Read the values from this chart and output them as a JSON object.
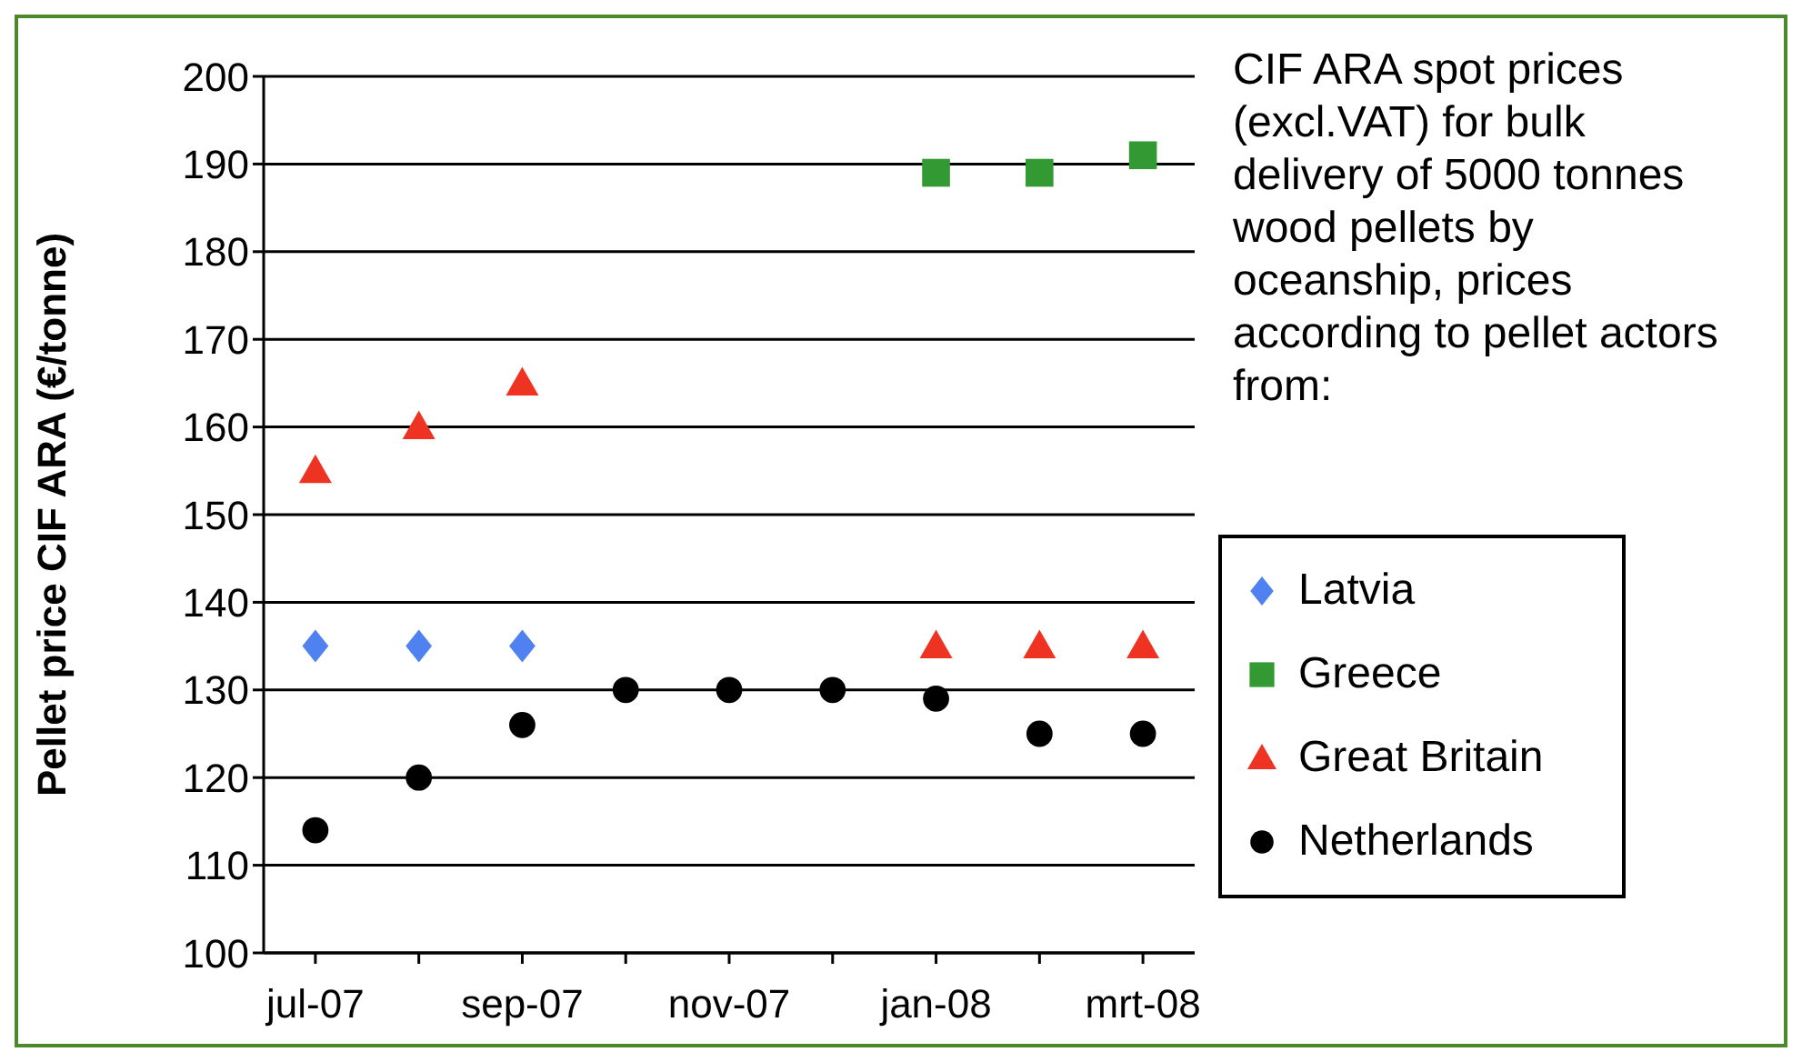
{
  "chart_data": {
    "type": "scatter",
    "title": "CIF ARA spot prices (excl.VAT) for bulk delivery of 5000 tonnes wood pellets by oceanship, prices according to pellet actors from:",
    "ylabel": "Pellet price CIF ARA (€/tonne)",
    "categories": [
      "jul-07",
      null,
      "sep-07",
      null,
      "nov-07",
      null,
      "jan-08",
      null,
      "mrt-08"
    ],
    "ylim": [
      100,
      200
    ],
    "yticks": [
      100,
      110,
      120,
      130,
      140,
      150,
      160,
      170,
      180,
      190,
      200
    ],
    "grid": "y",
    "legend": "right",
    "series": [
      {
        "name": "Latvia",
        "color": "#4f81f0",
        "marker": "diamond",
        "values": [
          135,
          135,
          135,
          null,
          null,
          null,
          null,
          null,
          null
        ]
      },
      {
        "name": "Greece",
        "color": "#339933",
        "marker": "square",
        "values": [
          null,
          null,
          null,
          null,
          null,
          null,
          189,
          189,
          191
        ]
      },
      {
        "name": "Great Britain",
        "color": "#ee3322",
        "marker": "triangle",
        "values": [
          155,
          160,
          165,
          null,
          null,
          null,
          135,
          135,
          135
        ]
      },
      {
        "name": "Netherlands",
        "color": "#000000",
        "marker": "circle",
        "values": [
          114,
          120,
          126,
          130,
          130,
          130,
          129,
          125,
          125
        ]
      }
    ]
  }
}
